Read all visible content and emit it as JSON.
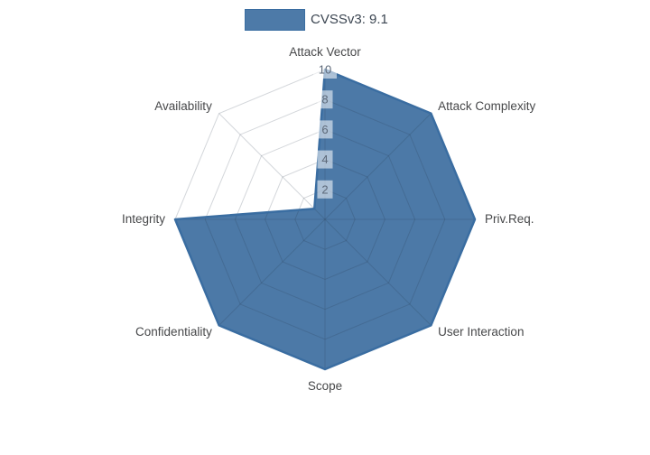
{
  "chart_data": {
    "type": "radar",
    "title": "",
    "categories": [
      "Attack Vector",
      "Attack Complexity",
      "Priv.Req.",
      "User Interaction",
      "Scope",
      "Confidentiality",
      "Integrity",
      "Availability"
    ],
    "series": [
      {
        "name": "CVSSv3: 9.1",
        "values": [
          10,
          10,
          10,
          10,
          10,
          10,
          10,
          1
        ]
      }
    ],
    "radial_ticks": [
      2,
      4,
      6,
      8,
      10
    ],
    "rlim": [
      0,
      10
    ],
    "grid": true,
    "start_axis": "top",
    "direction": "clockwise",
    "legend_position": "top-center",
    "colors": {
      "series_fill": "rgba(61,110,160,0.92)",
      "series_line": "#3a6da1",
      "legend_swatch": "#4d7aa8",
      "grid_line": "rgba(40,55,75,0.20)",
      "tick_box_bg": "rgba(255,255,255,0.55)",
      "tick_text": "#5c6878",
      "axis_label": "#47484a",
      "legend_text": "#3c4652",
      "background": "#ffffff"
    }
  }
}
